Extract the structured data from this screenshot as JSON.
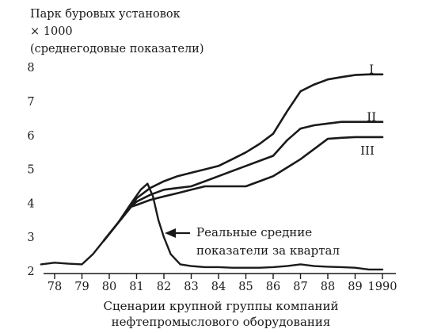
{
  "chart_data": {
    "type": "line",
    "ylabel_lines": [
      "Парк буровых установок",
      "× 1000",
      "(среднегодовые показатели)"
    ],
    "xlabel_lines": [
      "Сценарии крупной группы компаний",
      "нефтепромыслового оборудования"
    ],
    "x_ticks": [
      "78",
      "79",
      "80",
      "81",
      "82",
      "83",
      "84",
      "85",
      "86",
      "87",
      "88",
      "89",
      "1990"
    ],
    "y_ticks": [
      "2",
      "3",
      "4",
      "5",
      "6",
      "7",
      "8"
    ],
    "xlim": [
      1977.5,
      1990.3
    ],
    "ylim": [
      2,
      8
    ],
    "series": [
      {
        "name": "I",
        "points": [
          [
            1979.8,
            2.9
          ],
          [
            1980.3,
            3.4
          ],
          [
            1980.8,
            3.9
          ],
          [
            1981.0,
            4.15
          ],
          [
            1981.5,
            4.45
          ],
          [
            1982.0,
            4.65
          ],
          [
            1982.5,
            4.8
          ],
          [
            1983.0,
            4.9
          ],
          [
            1983.5,
            5.0
          ],
          [
            1984.0,
            5.1
          ],
          [
            1984.5,
            5.3
          ],
          [
            1985.0,
            5.5
          ],
          [
            1985.5,
            5.75
          ],
          [
            1986.0,
            6.05
          ],
          [
            1986.5,
            6.7
          ],
          [
            1987.0,
            7.3
          ],
          [
            1987.5,
            7.5
          ],
          [
            1988.0,
            7.65
          ],
          [
            1988.5,
            7.72
          ],
          [
            1989.0,
            7.78
          ],
          [
            1989.5,
            7.8
          ],
          [
            1990.0,
            7.8
          ]
        ]
      },
      {
        "name": "II",
        "points": [
          [
            1979.8,
            2.9
          ],
          [
            1980.3,
            3.4
          ],
          [
            1980.8,
            3.9
          ],
          [
            1981.0,
            4.05
          ],
          [
            1981.5,
            4.25
          ],
          [
            1982.0,
            4.4
          ],
          [
            1982.5,
            4.45
          ],
          [
            1983.0,
            4.5
          ],
          [
            1983.5,
            4.65
          ],
          [
            1984.0,
            4.8
          ],
          [
            1984.5,
            4.95
          ],
          [
            1985.0,
            5.1
          ],
          [
            1985.5,
            5.25
          ],
          [
            1986.0,
            5.4
          ],
          [
            1986.5,
            5.85
          ],
          [
            1987.0,
            6.2
          ],
          [
            1987.5,
            6.3
          ],
          [
            1988.0,
            6.35
          ],
          [
            1988.5,
            6.4
          ],
          [
            1989.0,
            6.4
          ],
          [
            1989.5,
            6.4
          ],
          [
            1990.0,
            6.4
          ]
        ]
      },
      {
        "name": "III",
        "points": [
          [
            1979.8,
            2.9
          ],
          [
            1980.3,
            3.4
          ],
          [
            1980.8,
            3.9
          ],
          [
            1981.0,
            3.95
          ],
          [
            1981.5,
            4.1
          ],
          [
            1982.0,
            4.2
          ],
          [
            1982.5,
            4.3
          ],
          [
            1983.0,
            4.4
          ],
          [
            1983.5,
            4.5
          ],
          [
            1984.0,
            4.5
          ],
          [
            1984.5,
            4.5
          ],
          [
            1985.0,
            4.5
          ],
          [
            1985.5,
            4.65
          ],
          [
            1986.0,
            4.8
          ],
          [
            1986.5,
            5.05
          ],
          [
            1987.0,
            5.3
          ],
          [
            1987.5,
            5.6
          ],
          [
            1988.0,
            5.9
          ],
          [
            1988.5,
            5.93
          ],
          [
            1989.0,
            5.95
          ],
          [
            1989.5,
            5.95
          ],
          [
            1990.0,
            5.95
          ]
        ]
      },
      {
        "name": "",
        "points": [
          [
            1977.5,
            2.2
          ],
          [
            1978.0,
            2.25
          ],
          [
            1978.5,
            2.22
          ],
          [
            1979.0,
            2.2
          ],
          [
            1979.4,
            2.5
          ],
          [
            1979.8,
            2.9
          ],
          [
            1980.3,
            3.4
          ],
          [
            1980.8,
            4.0
          ],
          [
            1981.15,
            4.4
          ],
          [
            1981.4,
            4.58
          ],
          [
            1981.6,
            4.2
          ],
          [
            1981.8,
            3.5
          ],
          [
            1982.0,
            3.0
          ],
          [
            1982.25,
            2.5
          ],
          [
            1982.6,
            2.2
          ],
          [
            1983.0,
            2.15
          ],
          [
            1983.5,
            2.12
          ],
          [
            1984.0,
            2.12
          ],
          [
            1984.5,
            2.1
          ],
          [
            1985.0,
            2.1
          ],
          [
            1985.5,
            2.1
          ],
          [
            1986.0,
            2.12
          ],
          [
            1986.5,
            2.15
          ],
          [
            1987.0,
            2.2
          ],
          [
            1987.5,
            2.15
          ],
          [
            1988.0,
            2.13
          ],
          [
            1988.5,
            2.12
          ],
          [
            1989.0,
            2.1
          ],
          [
            1989.5,
            2.05
          ],
          [
            1990.0,
            2.05
          ]
        ]
      }
    ],
    "annotation": {
      "lines": [
        "Реальные средние",
        "показатели за квартал"
      ],
      "points_to": [
        1981.9,
        3.25
      ]
    },
    "grid": false,
    "legend": "inline"
  }
}
